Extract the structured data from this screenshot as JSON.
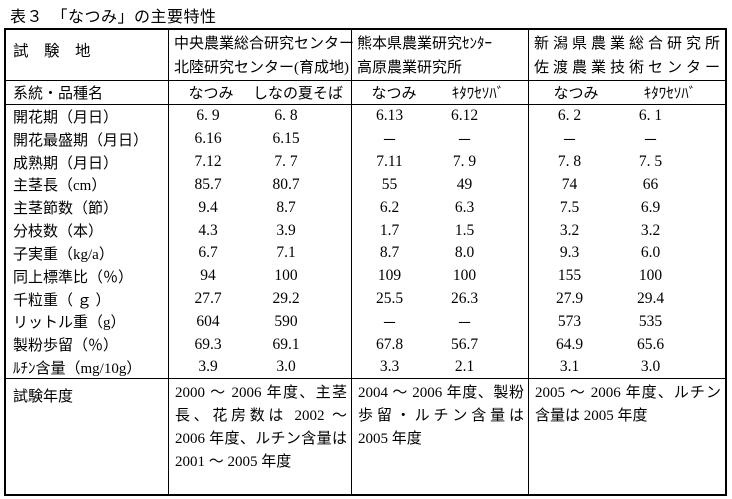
{
  "title": "表３　「なつみ」の主要特性",
  "table": {
    "corner": "試　験　地",
    "sites": [
      {
        "l1": "中央農業総合研究センター",
        "l2": "北陸研究センター(育成地)"
      },
      {
        "l1": "熊本県農業研究ｾﾝﾀｰ",
        "l2": "高原農業研究所"
      },
      {
        "l1": "新潟県農業総合研究所",
        "l2": "佐渡農業技術センター"
      }
    ],
    "variety_label": "系統・品種名",
    "varieties": [
      {
        "a": "なつみ",
        "b": "しなの夏そば"
      },
      {
        "a": "なつみ",
        "b": "ｷﾀﾜｾｿﾊﾞ"
      },
      {
        "a": "なつみ",
        "b": "ｷﾀﾜｾｿﾊﾞ"
      }
    ],
    "rows": [
      {
        "label": "開花期（月日）",
        "v": [
          "6. 9",
          "6. 8",
          "6.13",
          "6.12",
          "6. 2",
          "6. 1"
        ]
      },
      {
        "label": "開花最盛期（月日）",
        "v": [
          "6.16",
          "6.15",
          "－",
          "－",
          "－",
          "－"
        ]
      },
      {
        "label": "成熟期（月日）",
        "v": [
          "7.12",
          "7. 7",
          "7.11",
          "7. 9",
          "7. 8",
          "7. 5"
        ]
      },
      {
        "label": "主茎長（cm）",
        "v": [
          "85.7",
          "80.7",
          "55",
          "49",
          "74",
          "66"
        ]
      },
      {
        "label": "主茎節数（節）",
        "v": [
          "9.4",
          "8.7",
          "6.2",
          "6.3",
          "7.5",
          "6.9"
        ]
      },
      {
        "label": "分枝数（本）",
        "v": [
          "4.3",
          "3.9",
          "1.7",
          "1.5",
          "3.2",
          "3.2"
        ]
      },
      {
        "label": "子実重（kg/a）",
        "v": [
          "6.7",
          "7.1",
          "8.7",
          "8.0",
          "9.3",
          "6.0"
        ]
      },
      {
        "label": "同上標準比（％）",
        "v": [
          "94",
          "100",
          "109",
          "100",
          "155",
          "100"
        ]
      },
      {
        "label": "千粒重（ ｇ ）",
        "v": [
          "27.7",
          "29.2",
          "25.5",
          "26.3",
          "27.9",
          "29.4"
        ]
      },
      {
        "label": "リットル重（g）",
        "v": [
          "604",
          "590",
          "－",
          "－",
          "573",
          "535"
        ]
      },
      {
        "label": "製粉歩留（％）",
        "v": [
          "69.3",
          "69.1",
          "67.8",
          "56.7",
          "64.9",
          "65.6"
        ]
      },
      {
        "label": "ﾙﾁﾝ含量（mg/10g）",
        "v": [
          "3.9",
          "3.0",
          "3.3",
          "2.1",
          "3.1",
          "3.0"
        ]
      }
    ],
    "years_label": "試験年度",
    "years": [
      "2000 ～ 2006 年度、主茎長、花房数は 2002 ～ 2006 年度、ルチン含量は 2001 ～ 2005 年度",
      "2004 ～ 2006 年度、製粉歩留・ルチン含量は 2005 年度",
      "2005 ～ 2006 年度、ルチン含量は 2005 年度"
    ]
  }
}
